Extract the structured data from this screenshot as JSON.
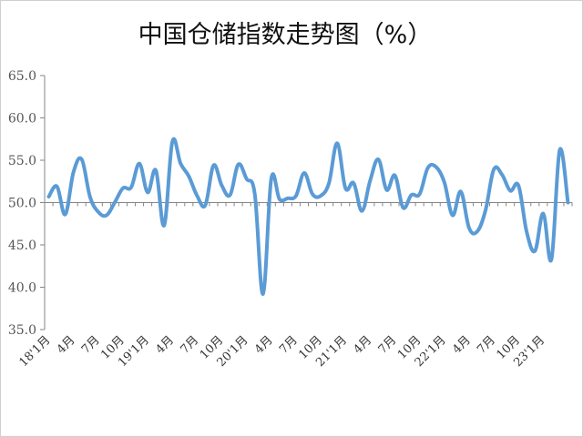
{
  "chart_data": {
    "type": "line",
    "title": "中国仓储指数走势图（%）",
    "ylim": [
      35.0,
      65.0
    ],
    "yticks": [
      "65.0",
      "60.0",
      "55.0",
      "50.0",
      "45.0",
      "40.0",
      "35.0"
    ],
    "baseline": 50.0,
    "x_tick_labels": [
      "18'1月",
      "4月",
      "7月",
      "10月",
      "19'1月",
      "4月",
      "7月",
      "10月",
      "20'1月",
      "4月",
      "7月",
      "10月",
      "21'1月",
      "4月",
      "7月",
      "10月",
      "22'1月",
      "4月",
      "7月",
      "10月",
      "23'1月"
    ],
    "line_color": "#5b9bd5",
    "axis_color": "#868686",
    "series": [
      {
        "values": [
          50.7,
          51.9,
          48.6,
          53.6,
          55.1,
          50.7,
          48.9,
          48.5,
          50.0,
          51.7,
          51.8,
          54.6,
          51.2,
          53.8,
          47.3,
          57.2,
          54.6,
          53.1,
          50.8,
          49.7,
          54.4,
          52.0,
          50.9,
          54.5,
          52.8,
          51.0,
          39.2,
          52.8,
          50.4,
          50.5,
          50.8,
          53.5,
          51.0,
          50.8,
          52.3,
          57.0,
          51.7,
          52.3,
          49.0,
          52.6,
          55.1,
          51.5,
          53.2,
          49.4,
          50.9,
          51.0,
          54.1,
          54.2,
          52.4,
          48.5,
          51.3,
          47.0,
          46.6,
          49.1,
          53.9,
          53.3,
          51.4,
          52.0,
          46.5,
          44.3,
          48.7,
          43.3,
          56.2,
          50.0
        ]
      }
    ]
  }
}
